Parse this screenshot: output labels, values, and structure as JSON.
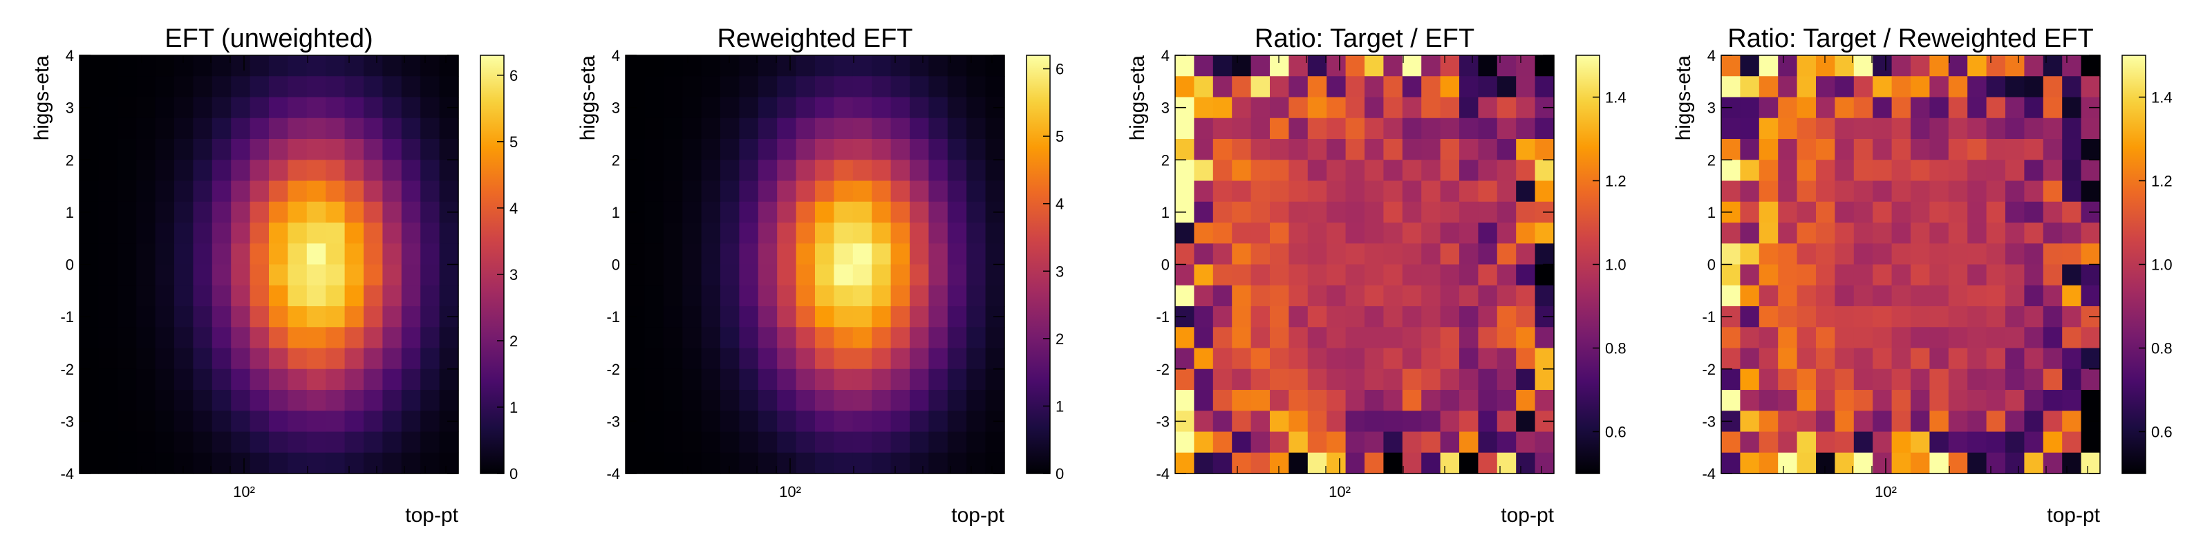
{
  "chart_data": [
    {
      "type": "heatmap",
      "title": "EFT (unweighted)",
      "xlabel": "top-pt",
      "ylabel": "higgs-eta",
      "x_scale": "log",
      "x_tick_label": "10²",
      "y_ticks": [
        "4",
        "3",
        "2",
        "1",
        "0",
        "-1",
        "-2",
        "-3",
        "-4"
      ],
      "ylim": [
        -4,
        4
      ],
      "grid": "20x20 bins",
      "colorbar": {
        "min": 0,
        "max": 6.3,
        "ticks": [
          "6",
          "5",
          "4",
          "3",
          "2",
          "1",
          "0"
        ]
      },
      "colormap": "inferno",
      "peak_value": 6.2,
      "peak_bin": [
        12,
        9.5
      ]
    },
    {
      "type": "heatmap",
      "title": "Reweighted EFT",
      "xlabel": "top-pt",
      "ylabel": "higgs-eta",
      "x_scale": "log",
      "x_tick_label": "10²",
      "y_ticks": [
        "4",
        "3",
        "2",
        "1",
        "0",
        "-1",
        "-2",
        "-3",
        "-4"
      ],
      "ylim": [
        -4,
        4
      ],
      "grid": "20x20 bins",
      "colorbar": {
        "min": 0,
        "max": 6.2,
        "ticks": [
          "6",
          "5",
          "4",
          "3",
          "2",
          "1",
          "0"
        ]
      },
      "colormap": "inferno",
      "peak_value": 6.1,
      "peak_bin": [
        11.5,
        9.5
      ]
    },
    {
      "type": "heatmap",
      "title": "Ratio: Target / EFT",
      "xlabel": "top-pt",
      "ylabel": "higgs-eta",
      "x_scale": "log",
      "x_tick_label": "10²",
      "y_ticks": [
        "4",
        "3",
        "2",
        "1",
        "0",
        "-1",
        "-2",
        "-3",
        "-4"
      ],
      "ylim": [
        -4,
        4
      ],
      "grid": "20x20 bins",
      "colorbar": {
        "min": 0.5,
        "max": 1.5,
        "ticks": [
          "1.4",
          "1.2",
          "1.0",
          "0.8",
          "0.6"
        ]
      },
      "colormap": "inferno",
      "central_value": 1.0
    },
    {
      "type": "heatmap",
      "title": "Ratio: Target / Reweighted EFT",
      "xlabel": "top-pt",
      "ylabel": "higgs-eta",
      "x_scale": "log",
      "x_tick_label": "10²",
      "y_ticks": [
        "4",
        "3",
        "2",
        "1",
        "0",
        "-1",
        "-2",
        "-3",
        "-4"
      ],
      "ylim": [
        -4,
        4
      ],
      "grid": "20x20 bins",
      "colorbar": {
        "min": 0.5,
        "max": 1.5,
        "ticks": [
          "1.4",
          "1.2",
          "1.0",
          "0.8",
          "0.6"
        ]
      },
      "colormap": "inferno",
      "central_value": 1.0
    }
  ],
  "colors": {
    "inferno": [
      "#000004",
      "#1b0c41",
      "#4a0c6b",
      "#781c6d",
      "#a52c60",
      "#cf4446",
      "#ed6925",
      "#fb9b06",
      "#f7d13d",
      "#fcffa4"
    ],
    "axis": "#000000"
  }
}
